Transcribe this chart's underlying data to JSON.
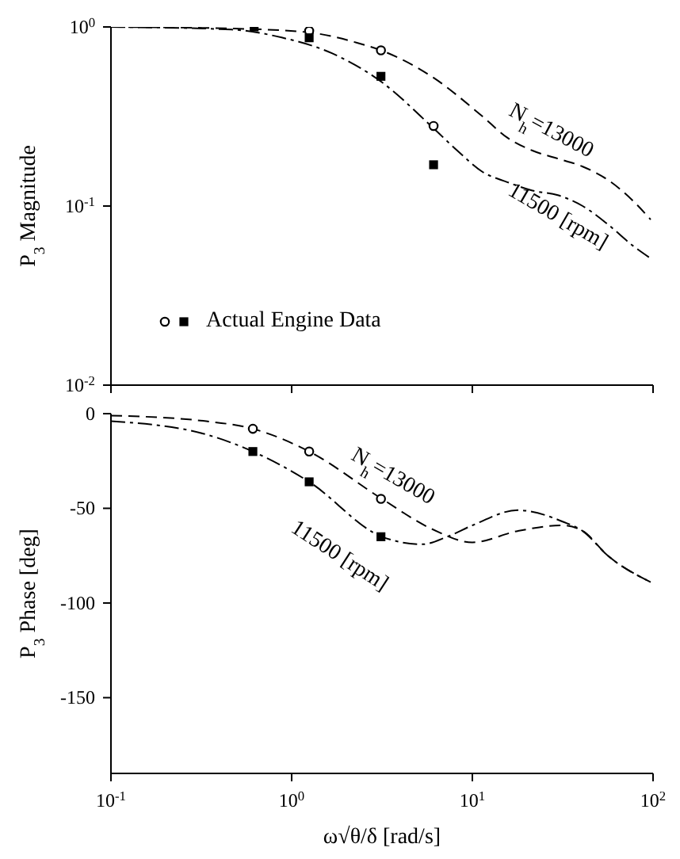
{
  "chart_data": [
    {
      "type": "line",
      "ylabel": "P$_{3}$ Magnitude",
      "log": "xy",
      "xlim": [
        0.1,
        100
      ],
      "ylim": [
        0.01,
        1
      ],
      "xticks": [
        {
          "value": 0.1,
          "label": null
        },
        {
          "value": 1,
          "label": null
        },
        {
          "value": 10,
          "label": null
        },
        {
          "value": 100,
          "label": null
        }
      ],
      "yticks": [
        {
          "value": 0.01,
          "label": "10$^{-2}$"
        },
        {
          "value": 0.1,
          "label": "10$^{-1}$"
        },
        {
          "value": 1,
          "label": "10$^{0}$"
        }
      ],
      "tick_labels": "y",
      "grid": false,
      "legend": "bottom left",
      "series": [
        {
          "type": "line",
          "color": "#000000",
          "line_style": "dashed",
          "x": [
            0.1,
            0.464,
            1.21,
            2.3,
            3.16,
            6.0,
            11.4,
            15.6,
            21.5,
            29.7,
            40.8,
            56.2,
            77.4,
            97
          ],
          "values": [
            1,
            0.98,
            0.935,
            0.816,
            0.737,
            0.526,
            0.316,
            0.241,
            0.204,
            0.184,
            0.166,
            0.14,
            0.107,
            0.084
          ]
        },
        {
          "type": "line",
          "color": "#000000",
          "line_style": "dashdot",
          "x": [
            0.1,
            0.464,
            0.88,
            1.67,
            3.16,
            6.0,
            8.25,
            11.4,
            15.6,
            21.5,
            29.7,
            40.8,
            56.2,
            77.4,
            97
          ],
          "values": [
            1,
            0.967,
            0.873,
            0.713,
            0.491,
            0.276,
            0.204,
            0.155,
            0.136,
            0.122,
            0.115,
            0.1,
            0.079,
            0.06,
            0.051
          ]
        },
        {
          "type": "scatter",
          "color": "#000000",
          "marker": "circle",
          "x": [
            1.25,
            3.12,
            6.1
          ],
          "values": [
            0.95,
            0.74,
            0.28
          ]
        },
        {
          "type": "scatter",
          "name": "Actual Engine Data",
          "color": "#000000",
          "marker": "square",
          "x": [
            0.62,
            1.25,
            3.12,
            6.1
          ],
          "values": [
            1.0,
            0.87,
            0.53,
            0.17
          ]
        }
      ],
      "annotations": [
        "N$_{h}$=13000",
        "11500 [rpm]"
      ]
    },
    {
      "type": "line",
      "ylabel": "P$_{3}$ Phase [deg]",
      "xlabel": "ω√θ/δ [rad/s]",
      "log": "x",
      "xlim": [
        0.1,
        100
      ],
      "ylim": [
        -190,
        0
      ],
      "xticks": [
        {
          "value": 0.1,
          "label": "10$^{-1}$"
        },
        {
          "value": 1,
          "label": "10$^{0}$"
        },
        {
          "value": 10,
          "label": "10$^{1}$"
        },
        {
          "value": 100,
          "label": "10$^{2}$"
        }
      ],
      "yticks": [
        0,
        -50,
        -100,
        -150
      ],
      "grid": false,
      "series": [
        {
          "type": "line",
          "color": "#000000",
          "line_style": "dashed",
          "x": [
            0.1,
            0.337,
            0.61,
            1.25,
            3.16,
            6.0,
            10,
            17.8,
            31.6,
            40.8,
            56.2,
            97
          ],
          "values": [
            -1,
            -4,
            -8,
            -20,
            -45,
            -61,
            -68,
            -62,
            -59,
            -62,
            -75,
            -89
          ]
        },
        {
          "type": "line",
          "color": "#000000",
          "line_style": "dashdot",
          "x": [
            0.1,
            0.337,
            0.61,
            1.25,
            3.16,
            5.27,
            7.26,
            10,
            17.8,
            31.6,
            40.8,
            56.2,
            97
          ],
          "values": [
            -4,
            -11,
            -20,
            -36,
            -65,
            -69,
            -65,
            -59,
            -51,
            -57,
            -62,
            -75,
            -89
          ]
        },
        {
          "type": "scatter",
          "color": "#000000",
          "marker": "circle",
          "x": [
            0.61,
            1.25,
            3.12
          ],
          "values": [
            -8,
            -20,
            -45
          ]
        },
        {
          "type": "scatter",
          "color": "#000000",
          "marker": "square",
          "x": [
            0.61,
            1.25,
            3.12
          ],
          "values": [
            -20,
            -36,
            -65
          ]
        }
      ],
      "annotations": [
        "N$_{h}$=13000",
        "11500 [rpm]"
      ]
    }
  ]
}
